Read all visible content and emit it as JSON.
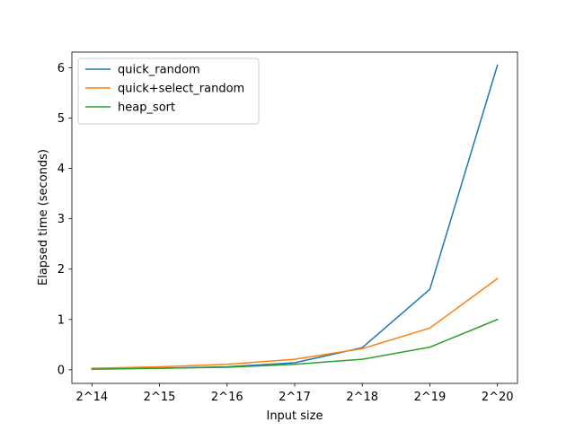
{
  "chart_data": {
    "type": "line",
    "title": "",
    "xlabel": "Input size",
    "ylabel": "Elapsed time (seconds)",
    "categories": [
      "2^14",
      "2^15",
      "2^16",
      "2^17",
      "2^18",
      "2^19",
      "2^20"
    ],
    "ylim": [
      -0.27,
      6.31
    ],
    "yticks": [
      0,
      1,
      2,
      3,
      4,
      5,
      6
    ],
    "grid": false,
    "legend_position": "upper-left",
    "series": [
      {
        "name": "quick_random",
        "color": "#1f77b4",
        "values": [
          0.02,
          0.03,
          0.06,
          0.14,
          0.44,
          1.6,
          6.05
        ]
      },
      {
        "name": "quick+select_random",
        "color": "#ff7f0e",
        "values": [
          0.03,
          0.06,
          0.11,
          0.21,
          0.42,
          0.83,
          1.81
        ]
      },
      {
        "name": "heap_sort",
        "color": "#2ca02c",
        "values": [
          0.01,
          0.03,
          0.05,
          0.11,
          0.21,
          0.45,
          1.0
        ]
      }
    ]
  }
}
